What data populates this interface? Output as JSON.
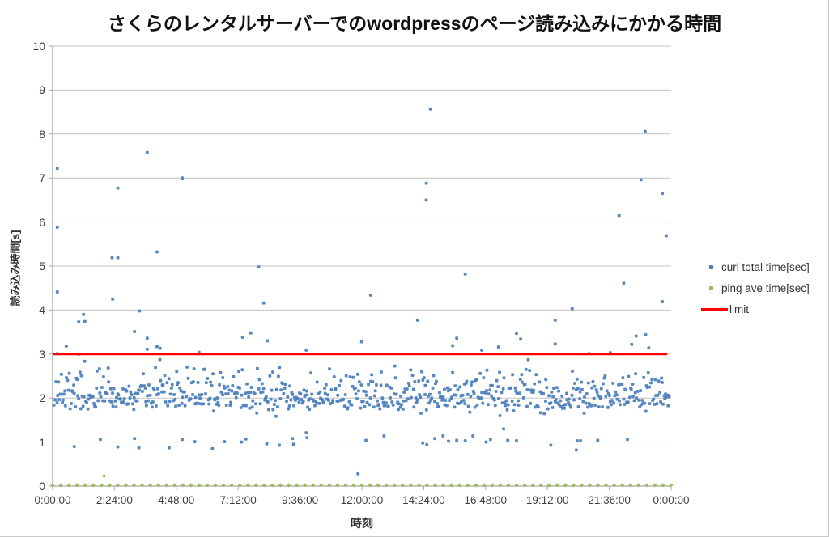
{
  "title": "さくらのレンタルサーバーでのwordpressのページ読み込みにかかる時間",
  "legend": {
    "curl_label": "curl total time[sec]",
    "ping_label": "ping ave time[sec]",
    "limit_label": "limit"
  },
  "colors": {
    "curl": "#4f81bd",
    "ping": "#9bbb59",
    "limit": "#ff0000",
    "gridline": "#c3c3c3",
    "axis": "#a6a6a6"
  },
  "chart_data": {
    "type": "scatter",
    "title": "さくらのレンタルサーバーでのwordpressのページ読み込みにかかる時間",
    "xlabel": "時刻",
    "ylabel": "読み込み時間[s]",
    "x_tick_labels": [
      "0:00:00",
      "2:24:00",
      "4:48:00",
      "7:12:00",
      "9:36:00",
      "12:00:00",
      "14:24:00",
      "16:48:00",
      "19:12:00",
      "21:36:00",
      "0:00:00"
    ],
    "x_tick_hours": [
      0,
      2.4,
      4.8,
      7.2,
      9.6,
      12,
      14.4,
      16.8,
      19.2,
      21.6,
      24
    ],
    "x_range_hours": [
      0,
      24
    ],
    "y_ticks": [
      0,
      1,
      2,
      3,
      4,
      5,
      6,
      7,
      8,
      9,
      10
    ],
    "ylim": [
      0,
      10
    ],
    "grid": "horizontal",
    "legend_position": "right",
    "series": [
      {
        "name": "curl total time[sec]",
        "type": "scatter",
        "color": "#4f81bd",
        "points_high": [
          [
            0.18,
            7.22
          ],
          [
            0.18,
            5.88
          ],
          [
            0.18,
            4.41
          ],
          [
            0.18,
            3.01
          ],
          [
            0.53,
            3.18
          ],
          [
            1.01,
            3.73
          ],
          [
            1.01,
            3.0
          ],
          [
            1.2,
            3.9
          ],
          [
            1.25,
            3.74
          ],
          [
            2.31,
            5.19
          ],
          [
            2.33,
            4.25
          ],
          [
            2.53,
            6.77
          ],
          [
            2.53,
            5.19
          ],
          [
            3.18,
            3.51
          ],
          [
            3.37,
            3.98
          ],
          [
            3.67,
            7.58
          ],
          [
            3.67,
            3.36
          ],
          [
            3.67,
            3.11
          ],
          [
            4.05,
            5.32
          ],
          [
            4.05,
            3.17
          ],
          [
            4.17,
            3.13
          ],
          [
            5.03,
            7.0
          ],
          [
            5.68,
            3.04
          ],
          [
            7.37,
            3.38
          ],
          [
            7.69,
            3.48
          ],
          [
            8.0,
            4.98
          ],
          [
            8.19,
            4.16
          ],
          [
            8.33,
            3.3
          ],
          [
            9.84,
            3.09
          ],
          [
            11.99,
            3.28
          ],
          [
            12.34,
            4.34
          ],
          [
            14.16,
            3.77
          ],
          [
            14.5,
            6.88
          ],
          [
            14.5,
            6.5
          ],
          [
            14.66,
            8.57
          ],
          [
            15.52,
            3.19
          ],
          [
            15.68,
            3.36
          ],
          [
            16.01,
            4.82
          ],
          [
            16.65,
            3.09
          ],
          [
            17.3,
            3.16
          ],
          [
            18.0,
            3.47
          ],
          [
            18.16,
            3.34
          ],
          [
            19.5,
            3.77
          ],
          [
            19.5,
            3.23
          ],
          [
            20.16,
            4.03
          ],
          [
            20.82,
            3.01
          ],
          [
            21.64,
            3.03
          ],
          [
            21.98,
            6.15
          ],
          [
            22.16,
            4.61
          ],
          [
            22.47,
            3.22
          ],
          [
            22.64,
            3.41
          ],
          [
            22.83,
            6.96
          ],
          [
            22.99,
            8.06
          ],
          [
            23.01,
            3.44
          ],
          [
            23.13,
            3.14
          ],
          [
            23.66,
            6.65
          ],
          [
            23.66,
            4.19
          ],
          [
            23.81,
            5.69
          ]
        ],
        "points_low": [
          [
            0.84,
            0.9
          ],
          [
            1.85,
            1.06
          ],
          [
            2.53,
            0.89
          ],
          [
            3.18,
            1.08
          ],
          [
            3.35,
            0.87
          ],
          [
            4.52,
            0.87
          ],
          [
            5.03,
            1.06
          ],
          [
            5.52,
            1.01
          ],
          [
            6.2,
            0.85
          ],
          [
            6.67,
            1.01
          ],
          [
            7.33,
            1.0
          ],
          [
            7.5,
            1.07
          ],
          [
            8.31,
            0.96
          ],
          [
            8.8,
            0.93
          ],
          [
            9.31,
            1.08
          ],
          [
            9.35,
            0.95
          ],
          [
            9.84,
            1.21
          ],
          [
            9.87,
            1.1
          ],
          [
            11.85,
            0.28
          ],
          [
            12.16,
            1.04
          ],
          [
            12.86,
            1.14
          ],
          [
            14.36,
            0.98
          ],
          [
            14.52,
            0.94
          ],
          [
            14.83,
            1.08
          ],
          [
            15.15,
            1.14
          ],
          [
            15.36,
            1.02
          ],
          [
            15.68,
            1.04
          ],
          [
            16.01,
            1.03
          ],
          [
            16.31,
            1.14
          ],
          [
            16.82,
            1.0
          ],
          [
            16.99,
            1.06
          ],
          [
            17.5,
            1.3
          ],
          [
            17.66,
            1.04
          ],
          [
            18.0,
            1.03
          ],
          [
            19.33,
            0.93
          ],
          [
            20.32,
            0.82
          ],
          [
            20.35,
            1.03
          ],
          [
            20.48,
            1.03
          ],
          [
            21.15,
            1.04
          ],
          [
            22.3,
            1.06
          ]
        ],
        "dense_band": {
          "description": "main cluster of page-load samples around 2 seconds over 24h",
          "count": 700,
          "t_range": [
            0.05,
            23.95
          ],
          "components": [
            {
              "weight": 0.55,
              "mean": 1.95,
              "sigma": 0.13
            },
            {
              "weight": 0.45,
              "mean": 2.28,
              "sigma": 0.21
            }
          ],
          "value_range": [
            1.58,
            2.92
          ],
          "seed": 7
        }
      },
      {
        "name": "ping ave time[sec]",
        "type": "scatter",
        "color": "#9bbb59",
        "baseline": {
          "count": 77,
          "value": 0.02,
          "t_range": [
            0,
            24
          ]
        },
        "points": [
          [
            2.0,
            0.23
          ]
        ]
      },
      {
        "name": "limit",
        "type": "line",
        "color": "#ff0000",
        "value": 3
      }
    ]
  }
}
